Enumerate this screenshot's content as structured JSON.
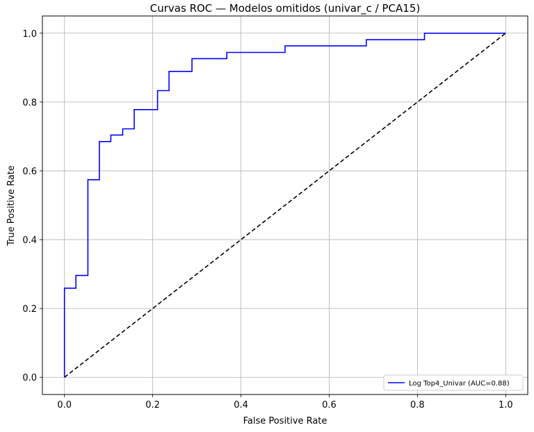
{
  "chart_data": {
    "type": "line",
    "title": "Curvas ROC — Modelos omitidos (univar_c / PCA15)",
    "xlabel": "False Positive Rate",
    "ylabel": "True Positive Rate",
    "xlim": [
      -0.05,
      1.05
    ],
    "ylim": [
      -0.05,
      1.05
    ],
    "xticks": [
      "0.0",
      "0.2",
      "0.4",
      "0.6",
      "0.8",
      "1.0"
    ],
    "yticks": [
      "0.0",
      "0.2",
      "0.4",
      "0.6",
      "0.8",
      "1.0"
    ],
    "grid": true,
    "legend_position": "lower-right",
    "series": [
      {
        "name": "Log Top4_Univar (AUC=0.88)",
        "color": "#0000ff",
        "style": "solid",
        "x": [
          0.0,
          0.0,
          0.026,
          0.026,
          0.053,
          0.053,
          0.079,
          0.079,
          0.105,
          0.105,
          0.132,
          0.132,
          0.158,
          0.158,
          0.211,
          0.211,
          0.237,
          0.237,
          0.289,
          0.289,
          0.368,
          0.368,
          0.5,
          0.5,
          0.684,
          0.684,
          0.816,
          0.816,
          1.0
        ],
        "y": [
          0.0,
          0.259,
          0.259,
          0.296,
          0.296,
          0.574,
          0.574,
          0.685,
          0.685,
          0.704,
          0.704,
          0.722,
          0.722,
          0.778,
          0.778,
          0.833,
          0.833,
          0.889,
          0.889,
          0.926,
          0.926,
          0.944,
          0.944,
          0.963,
          0.963,
          0.981,
          0.981,
          1.0,
          1.0
        ]
      },
      {
        "name": "",
        "color": "#000000",
        "style": "dashed",
        "x": [
          0.0,
          1.0
        ],
        "y": [
          0.0,
          1.0
        ]
      }
    ]
  }
}
